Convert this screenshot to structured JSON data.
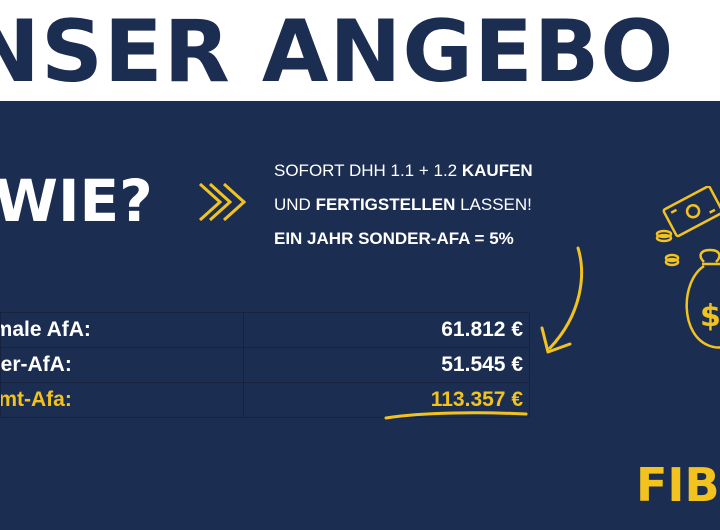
{
  "headline": "NSER ANGEBO",
  "question": "WIE?",
  "offer": {
    "line1_pre": "SOFORT DHH 1.1 + 1.2 ",
    "line1_bold": "KAUFEN",
    "line2_pre": "UND ",
    "line2_bold": "FERTIGSTELLEN",
    "line2_post": " LASSEN!",
    "line3": "EIN JAHR SONDER-AFA = 5%"
  },
  "table": {
    "rows": [
      {
        "label": "mmale AfA:",
        "value": "61.812 €"
      },
      {
        "label": "nder-AfA:",
        "value": "51.545 €"
      },
      {
        "label": "samt-Afa:",
        "value": "113.357 €"
      }
    ]
  },
  "footer_brand": "FIB",
  "colors": {
    "navy": "#1c2d52",
    "white": "#ffffff",
    "accent_yellow": "#f2c31e"
  },
  "icons": [
    "double-chevron-right-icon",
    "curved-arrow-icon",
    "money-bag-icon",
    "banknote-icon",
    "coins-icon"
  ]
}
